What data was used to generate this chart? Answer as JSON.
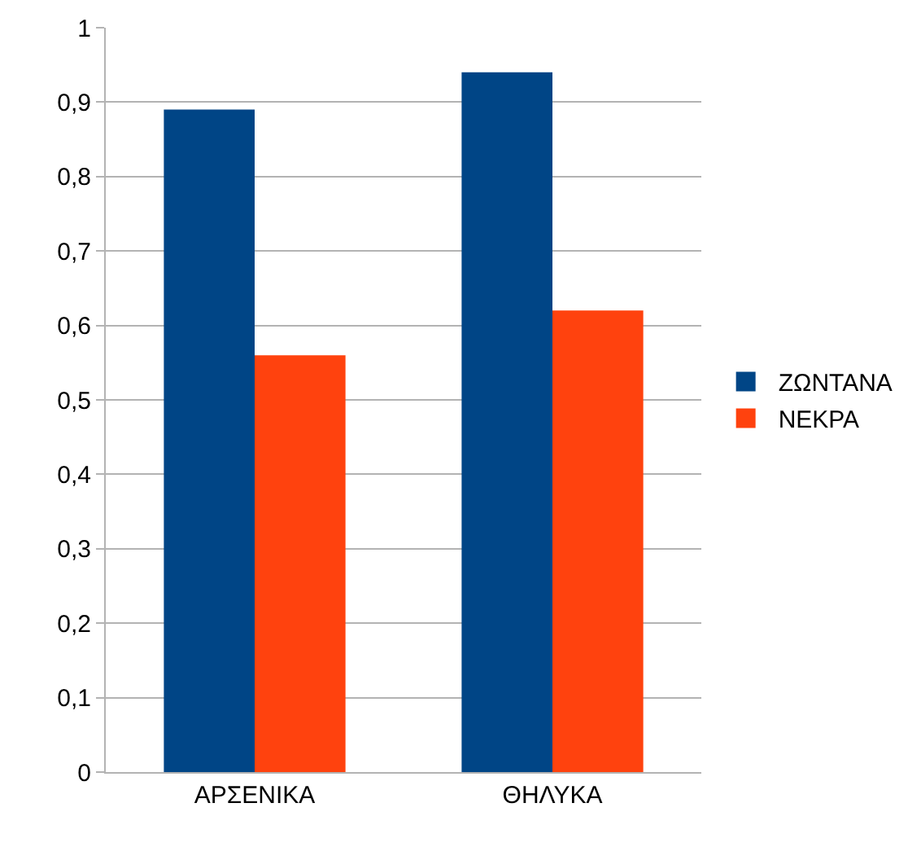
{
  "chart_data": {
    "type": "bar",
    "categories": [
      "ΑΡΣΕΝΙΚΑ",
      "ΘΗΛΥΚΑ"
    ],
    "series": [
      {
        "name": "ΖΩΝΤΑΝΑ",
        "color": "#004586",
        "values": [
          0.89,
          0.94
        ]
      },
      {
        "name": "ΝΕΚΡΑ",
        "color": "#ff420e",
        "values": [
          0.56,
          0.62
        ]
      }
    ],
    "ylim": [
      0,
      1
    ],
    "yticks": [
      0,
      {
        "value": 0.1,
        "label": "0,1"
      },
      {
        "value": 0.2,
        "label": "0,2"
      },
      {
        "value": 0.3,
        "label": "0,3"
      },
      {
        "value": 0.4,
        "label": "0,4"
      },
      {
        "value": 0.5,
        "label": "0,5"
      },
      {
        "value": 0.6,
        "label": "0,6"
      },
      {
        "value": 0.7,
        "label": "0,7"
      },
      {
        "value": 0.8,
        "label": "0,8"
      },
      {
        "value": 0.9,
        "label": "0,9"
      },
      1
    ],
    "grid": "y",
    "legend": "right"
  }
}
